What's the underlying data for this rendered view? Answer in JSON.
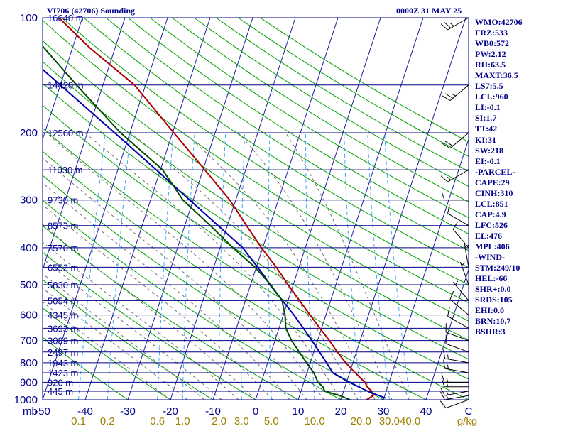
{
  "header": {
    "station": "VI706 (42706) Sounding",
    "time": "0000Z 31 MAY 25"
  },
  "colors": {
    "isobar": "#00008b",
    "isotherm": "#1a1aa0",
    "dry_adiabat": "#00a000",
    "moist_adiabat": "#707070",
    "mixing_ratio": "#3fa9ff",
    "temperature": "#b00000",
    "parcel": "#0000b0",
    "dewpoint": "#004d00",
    "text": "#00008b",
    "mixing_label": "#a08000"
  },
  "stats": [
    "WMO:42706",
    "FRZ:533",
    "WB0:572",
    "PW:2.12",
    "RH:63.5",
    "MAXT:36.5",
    "LS7:5.5",
    "LCL:960",
    "LI:-0.1",
    "SI:1.7",
    "TT:42",
    "KI:31",
    "SW:218",
    "EI:-0.1",
    "-PARCEL-",
    "CAPE:29",
    "CINH:310",
    "LCL:851",
    "CAP:4.9",
    "LFC:526",
    "EL:476",
    "MPL:406",
    "-WIND-",
    "STM:249/10",
    "HEL:-66",
    "SHR+:0.0",
    "SRDS:105",
    "EHI:0.0",
    "BRN:10.7",
    "BSHR:3"
  ],
  "chart_data": {
    "type": "line",
    "title": "VI706 (42706) Sounding",
    "chart_kind": "skew-T log-P",
    "y_scale": "log",
    "ylim": [
      1000,
      100
    ],
    "xlim": [
      -50,
      50
    ],
    "pressure_ticks": [
      {
        "p": 100,
        "label": "100"
      },
      {
        "p": 200,
        "label": "200"
      },
      {
        "p": 300,
        "label": "300"
      },
      {
        "p": 400,
        "label": "400"
      },
      {
        "p": 500,
        "label": "500"
      },
      {
        "p": 600,
        "label": "600"
      },
      {
        "p": 700,
        "label": "700"
      },
      {
        "p": 800,
        "label": "800"
      },
      {
        "p": 900,
        "label": "900"
      },
      {
        "p": 1000,
        "label": "1000"
      }
    ],
    "unit_pressure": "mb",
    "temp_ticks": [
      {
        "t": -50,
        "label": "-50"
      },
      {
        "t": -40,
        "label": "-40"
      },
      {
        "t": -30,
        "label": "-30"
      },
      {
        "t": -20,
        "label": "-20"
      },
      {
        "t": -10,
        "label": "-10"
      },
      {
        "t": 0,
        "label": "0"
      },
      {
        "t": 10,
        "label": "10"
      },
      {
        "t": 20,
        "label": "20"
      },
      {
        "t": 30,
        "label": "30"
      },
      {
        "t": 40,
        "label": "40"
      },
      {
        "t": 50,
        "label": "C"
      }
    ],
    "height_labels": [
      {
        "p": 100,
        "label": "16640 m"
      },
      {
        "p": 150,
        "label": "14420 m"
      },
      {
        "p": 200,
        "label": "12560 m"
      },
      {
        "p": 250,
        "label": "11030 m"
      },
      {
        "p": 300,
        "label": "9730 m"
      },
      {
        "p": 350,
        "label": "8573 m"
      },
      {
        "p": 400,
        "label": "7570 m"
      },
      {
        "p": 450,
        "label": "6552 m"
      },
      {
        "p": 500,
        "label": "5830 m"
      },
      {
        "p": 550,
        "label": "5054 m"
      },
      {
        "p": 600,
        "label": "4345 m"
      },
      {
        "p": 650,
        "label": "3693 m"
      },
      {
        "p": 700,
        "label": "3089 m"
      },
      {
        "p": 750,
        "label": "2497 m"
      },
      {
        "p": 800,
        "label": "1943 m"
      },
      {
        "p": 850,
        "label": "1423 m"
      },
      {
        "p": 900,
        "label": "920 m"
      },
      {
        "p": 950,
        "label": "445 m"
      }
    ],
    "mixing_ratio_labels": [
      {
        "w": 0.1,
        "label": "0.1"
      },
      {
        "w": 0.2,
        "label": "0.2"
      },
      {
        "w": 0.6,
        "label": "0.6"
      },
      {
        "w": 1.0,
        "label": "1.0"
      },
      {
        "w": 2.0,
        "label": "2.0"
      },
      {
        "w": 3.0,
        "label": "3.0"
      },
      {
        "w": 5.0,
        "label": "5.0"
      },
      {
        "w": 10.0,
        "label": "10.0"
      },
      {
        "w": 20.0,
        "label": "20.0"
      },
      {
        "w": 30.0,
        "label": "30.0"
      },
      {
        "w": 40.0,
        "label": "40.0"
      }
    ],
    "mixing_unit": "g/kg",
    "series": [
      {
        "key": "temperature",
        "points": [
          {
            "p": 1000,
            "t": 26.1
          },
          {
            "p": 975,
            "t": 27.3
          },
          {
            "p": 950,
            "t": 26.6
          },
          {
            "p": 925,
            "t": 25.2
          },
          {
            "p": 900,
            "t": 24.3
          },
          {
            "p": 850,
            "t": 21.3
          },
          {
            "p": 800,
            "t": 18.3
          },
          {
            "p": 750,
            "t": 15.5
          },
          {
            "p": 700,
            "t": 12.8
          },
          {
            "p": 650,
            "t": 9.6
          },
          {
            "p": 600,
            "t": 6.3
          },
          {
            "p": 550,
            "t": 2.7
          },
          {
            "p": 500,
            "t": -1.2
          },
          {
            "p": 450,
            "t": -5.3
          },
          {
            "p": 400,
            "t": -10.3
          },
          {
            "p": 350,
            "t": -15.5
          },
          {
            "p": 300,
            "t": -21.4
          },
          {
            "p": 250,
            "t": -29.6
          },
          {
            "p": 200,
            "t": -39.7
          },
          {
            "p": 150,
            "t": -52.6
          },
          {
            "p": 120,
            "t": -65.9
          },
          {
            "p": 100,
            "t": -75.5
          }
        ]
      },
      {
        "key": "parcel",
        "points": [
          {
            "p": 990,
            "t": 30.3
          },
          {
            "p": 950,
            "t": 25.7
          },
          {
            "p": 900,
            "t": 20.6
          },
          {
            "p": 851,
            "t": 16.1
          },
          {
            "p": 800,
            "t": 13.8
          },
          {
            "p": 700,
            "t": 8.7
          },
          {
            "p": 600,
            "t": 2.5
          },
          {
            "p": 500,
            "t": -5.5
          },
          {
            "p": 476,
            "t": -7.3
          },
          {
            "p": 400,
            "t": -14.7
          },
          {
            "p": 300,
            "t": -30.8
          },
          {
            "p": 250,
            "t": -41.0
          },
          {
            "p": 200,
            "t": -53.6
          },
          {
            "p": 150,
            "t": -70.0
          },
          {
            "p": 115,
            "t": -85.1
          }
        ]
      },
      {
        "key": "dewpoint",
        "points": [
          {
            "p": 1000,
            "t": 22.2
          },
          {
            "p": 975,
            "t": 19.4
          },
          {
            "p": 950,
            "t": 15.6
          },
          {
            "p": 925,
            "t": 14.8
          },
          {
            "p": 900,
            "t": 13.3
          },
          {
            "p": 850,
            "t": 11.6
          },
          {
            "p": 800,
            "t": 9.1
          },
          {
            "p": 750,
            "t": 6.6
          },
          {
            "p": 700,
            "t": 3.9
          },
          {
            "p": 650,
            "t": 1.6
          },
          {
            "p": 600,
            "t": 0.4
          },
          {
            "p": 550,
            "t": -1.4
          },
          {
            "p": 500,
            "t": -5.3
          },
          {
            "p": 450,
            "t": -10.3
          },
          {
            "p": 400,
            "t": -17.0
          },
          {
            "p": 350,
            "t": -24.0
          },
          {
            "p": 300,
            "t": -32.4
          },
          {
            "p": 250,
            "t": -39.5
          },
          {
            "p": 200,
            "t": -52.2
          },
          {
            "p": 150,
            "t": -66.2
          },
          {
            "p": 100,
            "t": -85.2
          }
        ]
      }
    ],
    "wind_barbs": [
      {
        "p": 1000,
        "dir": 250,
        "spd": 10
      },
      {
        "p": 975,
        "dir": 260,
        "spd": 15
      },
      {
        "p": 950,
        "dir": 260,
        "spd": 15
      },
      {
        "p": 925,
        "dir": 270,
        "spd": 15
      },
      {
        "p": 900,
        "dir": 270,
        "spd": 15
      },
      {
        "p": 850,
        "dir": 280,
        "spd": 15
      },
      {
        "p": 800,
        "dir": 280,
        "spd": 15
      },
      {
        "p": 750,
        "dir": 290,
        "spd": 10
      },
      {
        "p": 700,
        "dir": 290,
        "spd": 10
      },
      {
        "p": 650,
        "dir": 300,
        "spd": 10
      },
      {
        "p": 600,
        "dir": 310,
        "spd": 10
      },
      {
        "p": 550,
        "dir": 320,
        "spd": 5
      },
      {
        "p": 500,
        "dir": 340,
        "spd": 5
      },
      {
        "p": 450,
        "dir": 350,
        "spd": 5
      },
      {
        "p": 400,
        "dir": 320,
        "spd": 10
      },
      {
        "p": 350,
        "dir": 300,
        "spd": 10
      },
      {
        "p": 300,
        "dir": 270,
        "spd": 10
      },
      {
        "p": 250,
        "dir": 240,
        "spd": 15
      },
      {
        "p": 200,
        "dir": 230,
        "spd": 20
      },
      {
        "p": 150,
        "dir": 230,
        "spd": 25
      },
      {
        "p": 100,
        "dir": 240,
        "spd": 25
      }
    ],
    "grid": true
  }
}
